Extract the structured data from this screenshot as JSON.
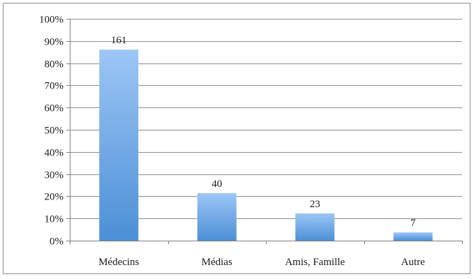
{
  "chart_data": {
    "type": "bar",
    "categories": [
      "Médecins",
      "Médias",
      "Amis, Famille",
      "Autre"
    ],
    "values": [
      86.1,
      21.4,
      12.3,
      3.7
    ],
    "data_labels": [
      "161",
      "40",
      "23",
      "7"
    ],
    "ylim": [
      0,
      100
    ],
    "y_ticks": [
      0,
      10,
      20,
      30,
      40,
      50,
      60,
      70,
      80,
      90,
      100
    ],
    "y_tick_labels": [
      "0%",
      "10%",
      "20%",
      "30%",
      "40%",
      "50%",
      "60%",
      "70%",
      "80%",
      "90%",
      "100%"
    ],
    "grid": true,
    "legend": "none",
    "colors": {
      "bar_top": "#9cc6f5",
      "bar_bottom": "#4c8fd6",
      "grid": "#8c8c8c",
      "axis": "#7f7f7f"
    }
  }
}
